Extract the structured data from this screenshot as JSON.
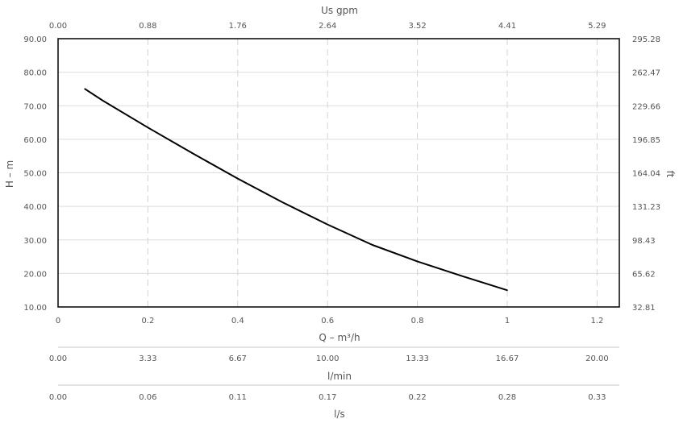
{
  "chart_data": {
    "type": "line",
    "xlabel": "Q – m³/h",
    "ylabel": "H – m",
    "xlim": [
      0,
      1.25
    ],
    "ylim": [
      10,
      90
    ],
    "x_ticks": [
      "0",
      "0.2",
      "0.4",
      "0.6",
      "0.8",
      "1",
      "1.2"
    ],
    "y_ticks": [
      "10.00",
      "20.00",
      "30.00",
      "40.00",
      "50.00",
      "60.00",
      "70.00",
      "80.00",
      "90.00"
    ],
    "top_axis": {
      "label": "Us gpm",
      "ticks": [
        "0.00",
        "0.88",
        "1.76",
        "2.64",
        "3.52",
        "4.41",
        "5.29"
      ]
    },
    "right_axis": {
      "label": "ft",
      "ticks": [
        "32.81",
        "65.62",
        "98.43",
        "131.23",
        "164.04",
        "196.85",
        "229.66",
        "262.47",
        "295.28"
      ]
    },
    "extra_axes": [
      {
        "label": "l/min",
        "ticks": [
          "0.00",
          "3.33",
          "6.67",
          "10.00",
          "13.33",
          "16.67",
          "20.00"
        ]
      },
      {
        "label": "l/s",
        "ticks": [
          "0.00",
          "0.06",
          "0.11",
          "0.17",
          "0.22",
          "0.28",
          "0.33"
        ]
      }
    ],
    "grid": true,
    "series": [
      {
        "x": [
          0.06,
          0.1,
          0.2,
          0.3,
          0.4,
          0.5,
          0.6,
          0.7,
          0.8,
          0.9,
          1.0
        ],
        "y": [
          75,
          71.5,
          63.5,
          55.8,
          48.3,
          41.2,
          34.6,
          28.5,
          23.6,
          19.2,
          15.0
        ]
      }
    ]
  }
}
